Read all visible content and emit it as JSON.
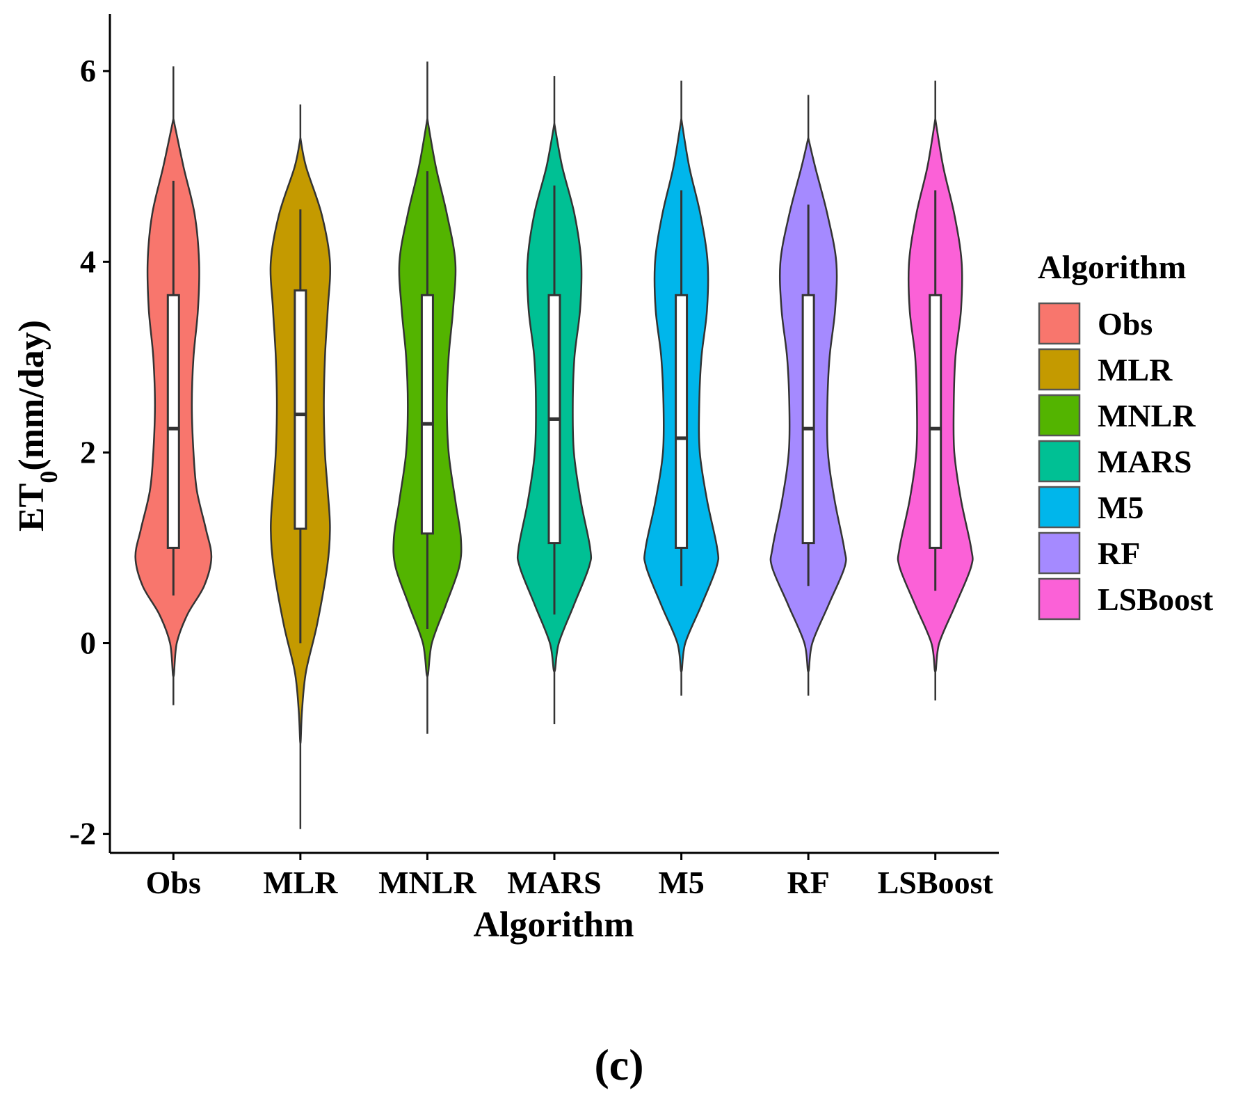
{
  "chart_data": {
    "type": "violin",
    "xlabel": "Algorithm",
    "ylabel_main": "ET",
    "ylabel_sub": "0",
    "ylabel_rest": "(mm/day)",
    "ylim": [
      -2.2,
      6.6
    ],
    "yticks": [
      -2,
      0,
      2,
      4,
      6
    ],
    "ytick_labels": [
      "-2",
      "0",
      "2",
      "4",
      "6"
    ],
    "legend": {
      "title": "Algorithm",
      "position": "right"
    },
    "panel_label": "(c)",
    "categories": [
      "Obs",
      "MLR",
      "MNLR",
      "MARS",
      "M5",
      "RF",
      "LSBoost"
    ],
    "series": [
      {
        "name": "Obs",
        "color": "#F8766D",
        "min": -0.65,
        "max": 6.05,
        "violin_min": -0.35,
        "violin_max": 5.5,
        "whisker_low": 0.5,
        "q1": 1.0,
        "median": 2.25,
        "q3": 3.65,
        "whisker_high": 4.85,
        "density": [
          [
            -0.35,
            0
          ],
          [
            0.0,
            0.06
          ],
          [
            0.3,
            0.25
          ],
          [
            0.6,
            0.55
          ],
          [
            0.9,
            0.68
          ],
          [
            1.2,
            0.58
          ],
          [
            1.6,
            0.42
          ],
          [
            2.0,
            0.36
          ],
          [
            2.5,
            0.33
          ],
          [
            3.0,
            0.36
          ],
          [
            3.5,
            0.44
          ],
          [
            4.0,
            0.46
          ],
          [
            4.5,
            0.38
          ],
          [
            5.0,
            0.18
          ],
          [
            5.5,
            0
          ]
        ]
      },
      {
        "name": "MLR",
        "color": "#C49A00",
        "min": -1.95,
        "max": 5.65,
        "violin_min": -1.05,
        "violin_max": 5.3,
        "whisker_low": 0.0,
        "q1": 1.2,
        "median": 2.4,
        "q3": 3.7,
        "whisker_high": 4.55,
        "density": [
          [
            -1.05,
            0
          ],
          [
            -0.7,
            0.03
          ],
          [
            -0.3,
            0.1
          ],
          [
            0.2,
            0.3
          ],
          [
            0.8,
            0.48
          ],
          [
            1.2,
            0.53
          ],
          [
            1.6,
            0.49
          ],
          [
            2.0,
            0.44
          ],
          [
            2.5,
            0.42
          ],
          [
            3.0,
            0.44
          ],
          [
            3.5,
            0.49
          ],
          [
            4.0,
            0.53
          ],
          [
            4.5,
            0.38
          ],
          [
            5.0,
            0.1
          ],
          [
            5.3,
            0
          ]
        ]
      },
      {
        "name": "MNLR",
        "color": "#53B400",
        "min": -0.95,
        "max": 6.1,
        "violin_min": -0.35,
        "violin_max": 5.5,
        "whisker_low": 0.15,
        "q1": 1.15,
        "median": 2.3,
        "q3": 3.65,
        "whisker_high": 4.95,
        "density": [
          [
            -0.35,
            0
          ],
          [
            0.0,
            0.08
          ],
          [
            0.4,
            0.33
          ],
          [
            0.8,
            0.57
          ],
          [
            1.1,
            0.6
          ],
          [
            1.5,
            0.5
          ],
          [
            2.0,
            0.38
          ],
          [
            2.5,
            0.35
          ],
          [
            3.0,
            0.38
          ],
          [
            3.5,
            0.46
          ],
          [
            4.0,
            0.5
          ],
          [
            4.5,
            0.35
          ],
          [
            5.0,
            0.15
          ],
          [
            5.5,
            0
          ]
        ]
      },
      {
        "name": "MARS",
        "color": "#00C094",
        "min": -0.85,
        "max": 5.95,
        "violin_min": -0.3,
        "violin_max": 5.45,
        "whisker_low": 0.3,
        "q1": 1.05,
        "median": 2.35,
        "q3": 3.65,
        "whisker_high": 4.8,
        "density": [
          [
            -0.3,
            0
          ],
          [
            0.0,
            0.08
          ],
          [
            0.4,
            0.35
          ],
          [
            0.8,
            0.62
          ],
          [
            1.0,
            0.64
          ],
          [
            1.5,
            0.47
          ],
          [
            2.0,
            0.35
          ],
          [
            2.5,
            0.33
          ],
          [
            3.0,
            0.36
          ],
          [
            3.5,
            0.46
          ],
          [
            4.0,
            0.48
          ],
          [
            4.5,
            0.36
          ],
          [
            5.0,
            0.14
          ],
          [
            5.45,
            0
          ]
        ]
      },
      {
        "name": "M5",
        "color": "#00B6EB",
        "min": -0.55,
        "max": 5.9,
        "violin_min": -0.3,
        "violin_max": 5.5,
        "whisker_low": 0.6,
        "q1": 1.0,
        "median": 2.15,
        "q3": 3.65,
        "whisker_high": 4.75,
        "density": [
          [
            -0.3,
            0
          ],
          [
            0.0,
            0.07
          ],
          [
            0.4,
            0.36
          ],
          [
            0.8,
            0.63
          ],
          [
            1.0,
            0.64
          ],
          [
            1.5,
            0.46
          ],
          [
            2.0,
            0.33
          ],
          [
            2.5,
            0.32
          ],
          [
            3.0,
            0.36
          ],
          [
            3.5,
            0.46
          ],
          [
            4.0,
            0.47
          ],
          [
            4.5,
            0.34
          ],
          [
            5.0,
            0.14
          ],
          [
            5.5,
            0
          ]
        ]
      },
      {
        "name": "RF",
        "color": "#A58AFF",
        "min": -0.55,
        "max": 5.75,
        "violin_min": -0.3,
        "violin_max": 5.3,
        "whisker_low": 0.6,
        "q1": 1.05,
        "median": 2.25,
        "q3": 3.65,
        "whisker_high": 4.6,
        "density": [
          [
            -0.3,
            0
          ],
          [
            0.0,
            0.07
          ],
          [
            0.4,
            0.36
          ],
          [
            0.8,
            0.65
          ],
          [
            1.0,
            0.64
          ],
          [
            1.5,
            0.47
          ],
          [
            2.0,
            0.35
          ],
          [
            2.5,
            0.34
          ],
          [
            3.0,
            0.38
          ],
          [
            3.5,
            0.48
          ],
          [
            4.0,
            0.5
          ],
          [
            4.5,
            0.34
          ],
          [
            5.0,
            0.12
          ],
          [
            5.3,
            0
          ]
        ]
      },
      {
        "name": "LSBoost",
        "color": "#FB61D7",
        "min": -0.6,
        "max": 5.9,
        "violin_min": -0.3,
        "violin_max": 5.5,
        "whisker_low": 0.55,
        "q1": 1.0,
        "median": 2.25,
        "q3": 3.65,
        "whisker_high": 4.75,
        "density": [
          [
            -0.3,
            0
          ],
          [
            0.0,
            0.07
          ],
          [
            0.4,
            0.36
          ],
          [
            0.8,
            0.64
          ],
          [
            1.0,
            0.64
          ],
          [
            1.5,
            0.46
          ],
          [
            2.0,
            0.34
          ],
          [
            2.5,
            0.33
          ],
          [
            3.0,
            0.36
          ],
          [
            3.5,
            0.46
          ],
          [
            4.0,
            0.47
          ],
          [
            4.5,
            0.34
          ],
          [
            5.0,
            0.14
          ],
          [
            5.5,
            0
          ]
        ]
      }
    ]
  }
}
